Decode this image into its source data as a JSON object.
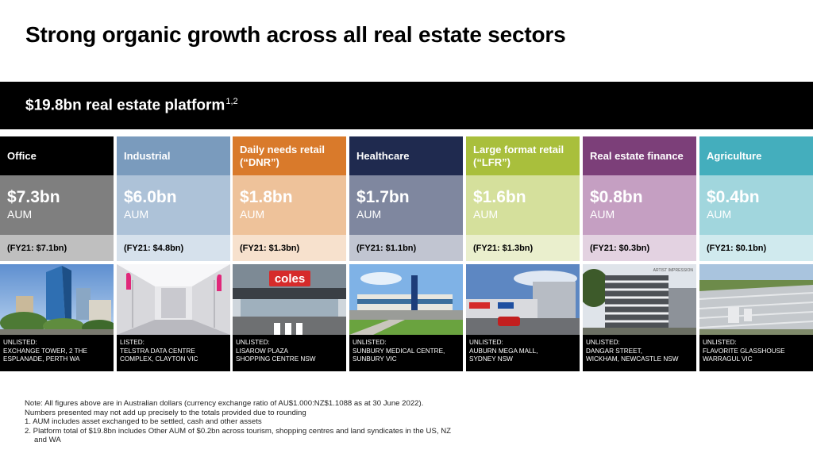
{
  "title": "Strong organic growth across all real estate sectors",
  "banner": {
    "text": "$19.8bn real estate platform",
    "sup": "1,2"
  },
  "sectors": [
    {
      "name": "Office",
      "aum": "$7.3bn",
      "unit": "AUM",
      "fy": "(FY21: $7.1bn)",
      "caption_l1": "UNLISTED:",
      "caption_l2": "EXCHANGE TOWER, 2 THE",
      "caption_l3": "ESPLANADE, PERTH WA",
      "colors": {
        "header": "#000000",
        "aum": "#7f7f7f",
        "fy": "#bfbfbf"
      }
    },
    {
      "name": "Industrial",
      "aum": "$6.0bn",
      "unit": "AUM",
      "fy": "(FY21: $4.8bn)",
      "caption_l1": "LISTED:",
      "caption_l2": "TELSTRA DATA CENTRE",
      "caption_l3": "COMPLEX, CLAYTON VIC",
      "colors": {
        "header": "#7a9bbd",
        "aum": "#adc2d8",
        "fy": "#d6e1ec"
      }
    },
    {
      "name": "Daily needs retail (“DNR”)",
      "aum": "$1.8bn",
      "unit": "AUM",
      "fy": "(FY21: $1.3bn)",
      "caption_l1": "UNLISTED:",
      "caption_l2": "LISAROW PLAZA",
      "caption_l3": "SHOPPING CENTRE NSW",
      "colors": {
        "header": "#d97a2b",
        "aum": "#eec29a",
        "fy": "#f7e1cd"
      }
    },
    {
      "name": "Healthcare",
      "aum": "$1.7bn",
      "unit": "AUM",
      "fy": "(FY21: $1.1bn)",
      "caption_l1": "UNLISTED:",
      "caption_l2": "SUNBURY MEDICAL CENTRE,",
      "caption_l3": "SUNBURY VIC",
      "colors": {
        "header": "#1f2a4f",
        "aum": "#7f879f",
        "fy": "#c1c5d1"
      }
    },
    {
      "name": "Large format retail (“LFR”)",
      "aum": "$1.6bn",
      "unit": "AUM",
      "fy": "(FY21: $1.3bn)",
      "caption_l1": "UNLISTED:",
      "caption_l2": "AUBURN MEGA MALL,",
      "caption_l3": "SYDNEY NSW",
      "colors": {
        "header": "#a9bf3c",
        "aum": "#d5e09c",
        "fy": "#eaefcd"
      }
    },
    {
      "name": "Real estate finance",
      "aum": "$0.8bn",
      "unit": "AUM",
      "fy": "(FY21: $0.3bn)",
      "caption_l1": "UNLISTED:",
      "caption_l2": "DANGAR STREET,",
      "caption_l3": "WICKHAM, NEWCASTLE NSW",
      "colors": {
        "header": "#7c3f79",
        "aum": "#c59fc2",
        "fy": "#e3d2e1"
      }
    },
    {
      "name": "Agriculture",
      "aum": "$0.4bn",
      "unit": "AUM",
      "fy": "(FY21: $0.1bn)",
      "caption_l1": "UNLISTED:",
      "caption_l2": "FLAVORITE GLASSHOUSE",
      "caption_l3": "WARRAGUL VIC",
      "colors": {
        "header": "#44aebd",
        "aum": "#a1d6dd",
        "fy": "#d0eaee"
      }
    }
  ],
  "photo_text": {
    "coles": "coles",
    "artist": "ARTIST IMPRESSION"
  },
  "notes": {
    "l1": "Note: All figures above are in Australian dollars (currency exchange ratio of AU$1.000:NZ$1.1088 as at 30 June 2022).",
    "l2": "Numbers presented may not add up precisely to the totals provided due to rounding",
    "l3": "1. AUM includes asset exchanged to be settled, cash and other assets",
    "l4": "2. Platform total of $19.8bn includes Other AUM of $0.2bn across tourism, shopping centres and land syndicates in the US, NZ",
    "l5": "and WA"
  }
}
